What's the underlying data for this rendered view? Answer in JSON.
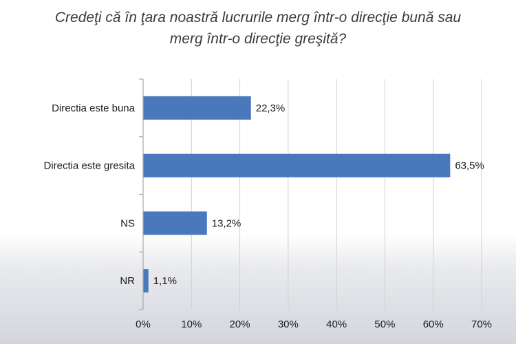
{
  "title_line1": "Credeţi că în ţara noastră lucrurile merg într-o direcţie bună sau",
  "title_line2": "merg într-o direcţie greşită?",
  "chart_data": {
    "type": "bar",
    "orientation": "horizontal",
    "categories": [
      "Directia este buna",
      "Directia este gresita",
      "NS",
      "NR"
    ],
    "values": [
      22.3,
      63.5,
      13.2,
      1.1
    ],
    "value_labels": [
      "22,3%",
      "63,5%",
      "13,2%",
      "1,1%"
    ],
    "xlim": [
      0,
      70
    ],
    "x_ticks": [
      0,
      10,
      20,
      30,
      40,
      50,
      60,
      70
    ],
    "x_tick_labels": [
      "0%",
      "10%",
      "20%",
      "30%",
      "40%",
      "50%",
      "60%",
      "70%"
    ],
    "grid": true,
    "legend": false,
    "bar_color": "#4a78bd",
    "grid_color": "#d0d0d0"
  }
}
